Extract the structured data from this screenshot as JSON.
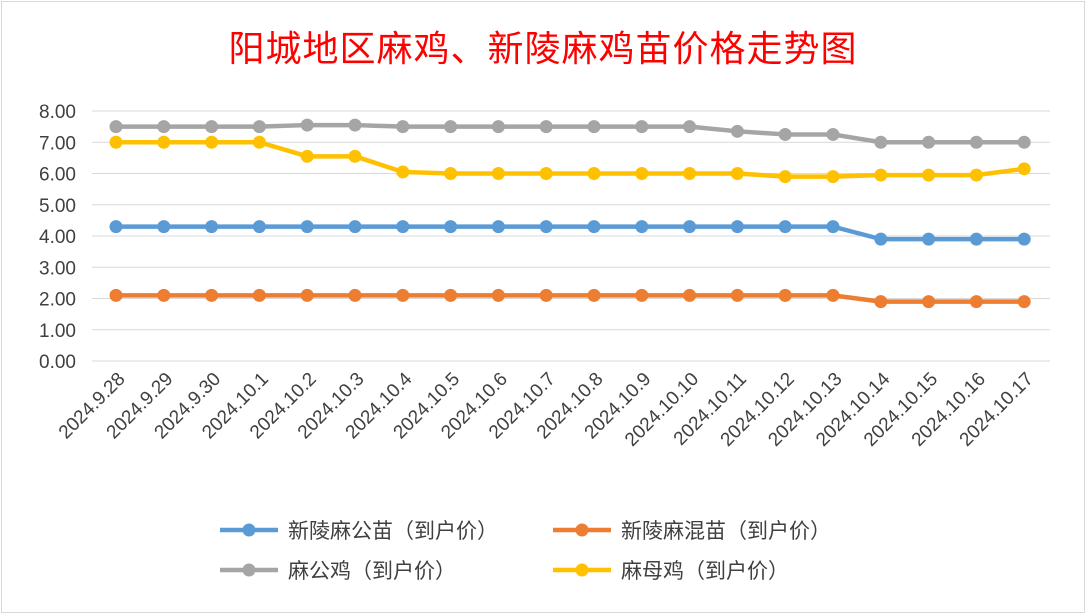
{
  "title": "阳城地区麻鸡、新陵麻鸡苗价格走势图",
  "chart_data": {
    "type": "line",
    "title": "阳城地区麻鸡、新陵麻鸡苗价格走势图",
    "x": [
      "2024.9.28",
      "2024.9.29",
      "2024.9.30",
      "2024.10.1",
      "2024.10.2",
      "2024.10.3",
      "2024.10.4",
      "2024.10.5",
      "2024.10.6",
      "2024.10.7",
      "2024.10.8",
      "2024.10.9",
      "2024.10.10",
      "2024.10.11",
      "2024.10.12",
      "2024.10.13",
      "2024.10.14",
      "2024.10.15",
      "2024.10.16",
      "2024.10.17"
    ],
    "y_ticks": [
      "0.00",
      "1.00",
      "2.00",
      "3.00",
      "4.00",
      "5.00",
      "6.00",
      "7.00",
      "8.00"
    ],
    "ylim": [
      0,
      8
    ],
    "grid": true,
    "legend_position": "bottom",
    "series": [
      {
        "name": "新陵麻公苗（到户价）",
        "color": "#5b9bd5",
        "values": [
          4.3,
          4.3,
          4.3,
          4.3,
          4.3,
          4.3,
          4.3,
          4.3,
          4.3,
          4.3,
          4.3,
          4.3,
          4.3,
          4.3,
          4.3,
          4.3,
          3.9,
          3.9,
          3.9,
          3.9
        ]
      },
      {
        "name": "新陵麻混苗（到户价）",
        "color": "#ed7d31",
        "values": [
          2.1,
          2.1,
          2.1,
          2.1,
          2.1,
          2.1,
          2.1,
          2.1,
          2.1,
          2.1,
          2.1,
          2.1,
          2.1,
          2.1,
          2.1,
          2.1,
          1.9,
          1.9,
          1.9,
          1.9
        ]
      },
      {
        "name": "麻公鸡（到户价）",
        "color": "#a5a5a5",
        "values": [
          7.5,
          7.5,
          7.5,
          7.5,
          7.55,
          7.55,
          7.5,
          7.5,
          7.5,
          7.5,
          7.5,
          7.5,
          7.5,
          7.35,
          7.25,
          7.25,
          7.0,
          7.0,
          7.0,
          7.0
        ]
      },
      {
        "name": "麻母鸡（到户价）",
        "color": "#ffc000",
        "values": [
          7.0,
          7.0,
          7.0,
          7.0,
          6.55,
          6.55,
          6.05,
          6.0,
          6.0,
          6.0,
          6.0,
          6.0,
          6.0,
          6.0,
          5.9,
          5.9,
          5.95,
          5.95,
          5.95,
          6.15
        ]
      }
    ]
  }
}
